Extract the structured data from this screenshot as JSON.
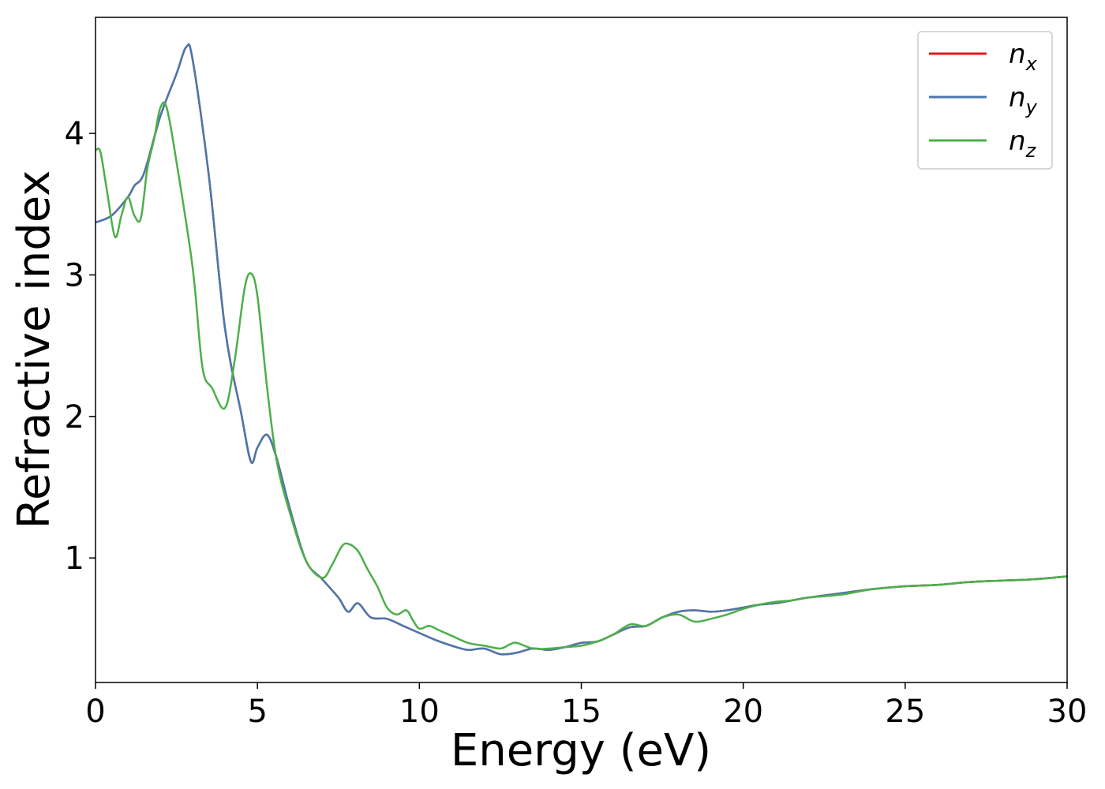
{
  "chart_data": {
    "type": "line",
    "title": "",
    "xlabel": "Energy (eV)",
    "ylabel": "Refractive index",
    "xlim": [
      0,
      30
    ],
    "ylim": [
      0.12,
      4.82
    ],
    "xticks": [
      0,
      5,
      10,
      15,
      20,
      25,
      30
    ],
    "yticks": [
      1,
      2,
      3,
      4
    ],
    "grid": false,
    "legend_position": "top-right",
    "series": [
      {
        "name": "n",
        "subscript": "x",
        "color": "#e41a1c",
        "x": [
          0,
          0.5,
          1.0,
          1.2,
          1.5,
          2.0,
          2.5,
          2.8,
          3.0,
          3.5,
          4.0,
          4.5,
          4.8,
          5.0,
          5.3,
          5.6,
          6.0,
          6.5,
          7.0,
          7.5,
          7.8,
          8.1,
          8.5,
          9.0,
          9.5,
          10.0,
          10.5,
          11.0,
          11.5,
          12.0,
          12.5,
          13.0,
          13.5,
          14.0,
          14.5,
          15.0,
          15.5,
          16.0,
          16.5,
          17.0,
          17.5,
          18.0,
          18.5,
          19.0,
          19.5,
          20.0,
          20.5,
          21.0,
          21.5,
          22.0,
          23.0,
          24.0,
          25.0,
          26.0,
          27.0,
          28.0,
          29.0,
          30.0
        ],
        "values": [
          3.37,
          3.42,
          3.55,
          3.63,
          3.72,
          4.12,
          4.42,
          4.61,
          4.52,
          3.7,
          2.62,
          2.02,
          1.68,
          1.78,
          1.87,
          1.7,
          1.35,
          0.98,
          0.85,
          0.72,
          0.62,
          0.68,
          0.58,
          0.57,
          0.52,
          0.47,
          0.42,
          0.38,
          0.35,
          0.36,
          0.32,
          0.33,
          0.36,
          0.35,
          0.37,
          0.4,
          0.41,
          0.46,
          0.51,
          0.52,
          0.58,
          0.62,
          0.63,
          0.62,
          0.63,
          0.65,
          0.67,
          0.68,
          0.7,
          0.72,
          0.75,
          0.78,
          0.8,
          0.81,
          0.83,
          0.84,
          0.85,
          0.87
        ]
      },
      {
        "name": "n",
        "subscript": "y",
        "color": "#4a78ad",
        "x": [
          0,
          0.5,
          1.0,
          1.2,
          1.5,
          2.0,
          2.5,
          2.8,
          3.0,
          3.5,
          4.0,
          4.5,
          4.8,
          5.0,
          5.3,
          5.6,
          6.0,
          6.5,
          7.0,
          7.5,
          7.8,
          8.1,
          8.5,
          9.0,
          9.5,
          10.0,
          10.5,
          11.0,
          11.5,
          12.0,
          12.5,
          13.0,
          13.5,
          14.0,
          14.5,
          15.0,
          15.5,
          16.0,
          16.5,
          17.0,
          17.5,
          18.0,
          18.5,
          19.0,
          19.5,
          20.0,
          20.5,
          21.0,
          21.5,
          22.0,
          23.0,
          24.0,
          25.0,
          26.0,
          27.0,
          28.0,
          29.0,
          30.0
        ],
        "values": [
          3.37,
          3.42,
          3.55,
          3.63,
          3.72,
          4.12,
          4.42,
          4.61,
          4.52,
          3.7,
          2.62,
          2.02,
          1.68,
          1.78,
          1.87,
          1.7,
          1.35,
          0.98,
          0.85,
          0.72,
          0.62,
          0.68,
          0.58,
          0.57,
          0.52,
          0.47,
          0.42,
          0.38,
          0.35,
          0.36,
          0.32,
          0.33,
          0.36,
          0.35,
          0.37,
          0.4,
          0.41,
          0.46,
          0.51,
          0.52,
          0.58,
          0.62,
          0.63,
          0.62,
          0.63,
          0.65,
          0.67,
          0.68,
          0.7,
          0.72,
          0.75,
          0.78,
          0.8,
          0.81,
          0.83,
          0.84,
          0.85,
          0.87
        ]
      },
      {
        "name": "n",
        "subscript": "z",
        "color": "#4daf4a",
        "x": [
          0,
          0.15,
          0.35,
          0.6,
          0.8,
          1.0,
          1.2,
          1.4,
          1.6,
          1.8,
          2.0,
          2.2,
          2.5,
          3.0,
          3.3,
          3.6,
          4.0,
          4.3,
          4.6,
          4.8,
          5.0,
          5.3,
          5.6,
          6.0,
          6.5,
          7.0,
          7.3,
          7.6,
          7.8,
          8.1,
          8.4,
          8.7,
          9.0,
          9.3,
          9.6,
          9.8,
          10.0,
          10.3,
          10.6,
          11.0,
          11.5,
          12.0,
          12.5,
          12.8,
          13.0,
          13.5,
          14.0,
          14.5,
          15.0,
          15.5,
          16.0,
          16.5,
          17.0,
          17.5,
          18.0,
          18.5,
          19.0,
          19.5,
          20.0,
          20.5,
          21.0,
          21.5,
          22.0,
          23.0,
          24.0,
          25.0,
          26.0,
          27.0,
          28.0,
          29.0,
          30.0
        ],
        "values": [
          3.88,
          3.87,
          3.6,
          3.27,
          3.42,
          3.55,
          3.42,
          3.4,
          3.75,
          3.95,
          4.18,
          4.18,
          3.8,
          3.05,
          2.35,
          2.2,
          2.06,
          2.4,
          2.9,
          3.01,
          2.85,
          2.2,
          1.68,
          1.32,
          0.98,
          0.86,
          0.95,
          1.08,
          1.1,
          1.05,
          0.92,
          0.8,
          0.65,
          0.6,
          0.63,
          0.56,
          0.5,
          0.52,
          0.49,
          0.45,
          0.4,
          0.38,
          0.36,
          0.39,
          0.4,
          0.36,
          0.36,
          0.37,
          0.38,
          0.41,
          0.46,
          0.53,
          0.52,
          0.58,
          0.6,
          0.55,
          0.57,
          0.6,
          0.64,
          0.67,
          0.69,
          0.7,
          0.72,
          0.74,
          0.78,
          0.8,
          0.81,
          0.83,
          0.84,
          0.85,
          0.87
        ]
      }
    ]
  }
}
